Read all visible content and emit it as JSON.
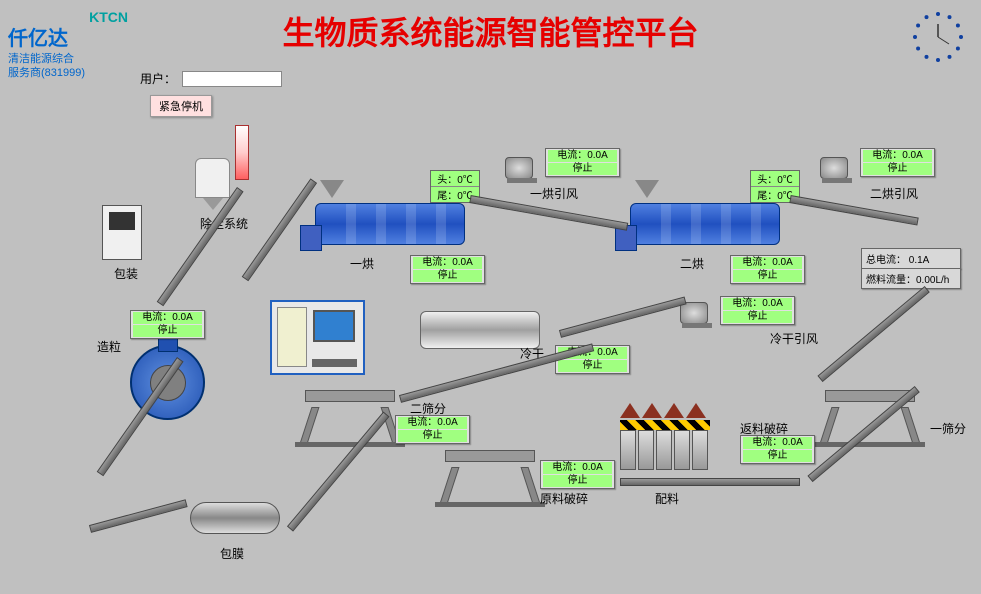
{
  "title": "生物质系统能源智能管控平台",
  "logo": {
    "ktcn": "KTCN",
    "name": "仟亿达",
    "sub1": "清洁能源综合",
    "sub2": "服务商(831999)"
  },
  "user_label": "用户：",
  "user_value": "",
  "estop": "紧急停机",
  "labels": {
    "dust": "除尘系统",
    "pack": "包装",
    "pellet": "造粒",
    "film": "包膜",
    "dryer1": "一烘",
    "dryer2": "二烘",
    "fan1": "一烘引风",
    "fan2": "二烘引风",
    "cool": "冷干",
    "coolfan": "冷干引风",
    "sieve1": "一筛分",
    "sieve2": "二筛分",
    "crush1": "原料破碎",
    "crush2": "返料破碎",
    "mix": "配料"
  },
  "temps": {
    "d1_head": "头：0℃",
    "d1_tail": "尾：0℃",
    "d2_head": "头：0℃",
    "d2_tail": "尾：0℃"
  },
  "status": {
    "pellet": {
      "current": "电流：0.0A",
      "state": "停止"
    },
    "dryer1": {
      "current": "电流：0.0A",
      "state": "停止"
    },
    "dryer2": {
      "current": "电流：0.0A",
      "state": "停止"
    },
    "fan1": {
      "current": "电流：0.0A",
      "state": "停止"
    },
    "fan2": {
      "current": "电流：0.0A",
      "state": "停止"
    },
    "cool": {
      "current": "电流：0.0A",
      "state": "停止"
    },
    "coolfan": {
      "current": "电流：0.0A",
      "state": "停止"
    },
    "sieve2": {
      "current": "电流：0.0A",
      "state": "停止"
    },
    "crush1": {
      "current": "电流：0.0A",
      "state": "停止"
    },
    "crush2": {
      "current": "电流：0.0A",
      "state": "停止"
    }
  },
  "info": {
    "total_current": "总电流：  0.1A",
    "fuel_flow": "燃料流量：0.00L/h"
  },
  "colors": {
    "bg": "#c0c0c0",
    "title": "#e60000",
    "status_ok": "#a0ff80",
    "dryer": "#2050c0",
    "logo_teal": "#00a0a0",
    "logo_blue": "#0066cc"
  }
}
